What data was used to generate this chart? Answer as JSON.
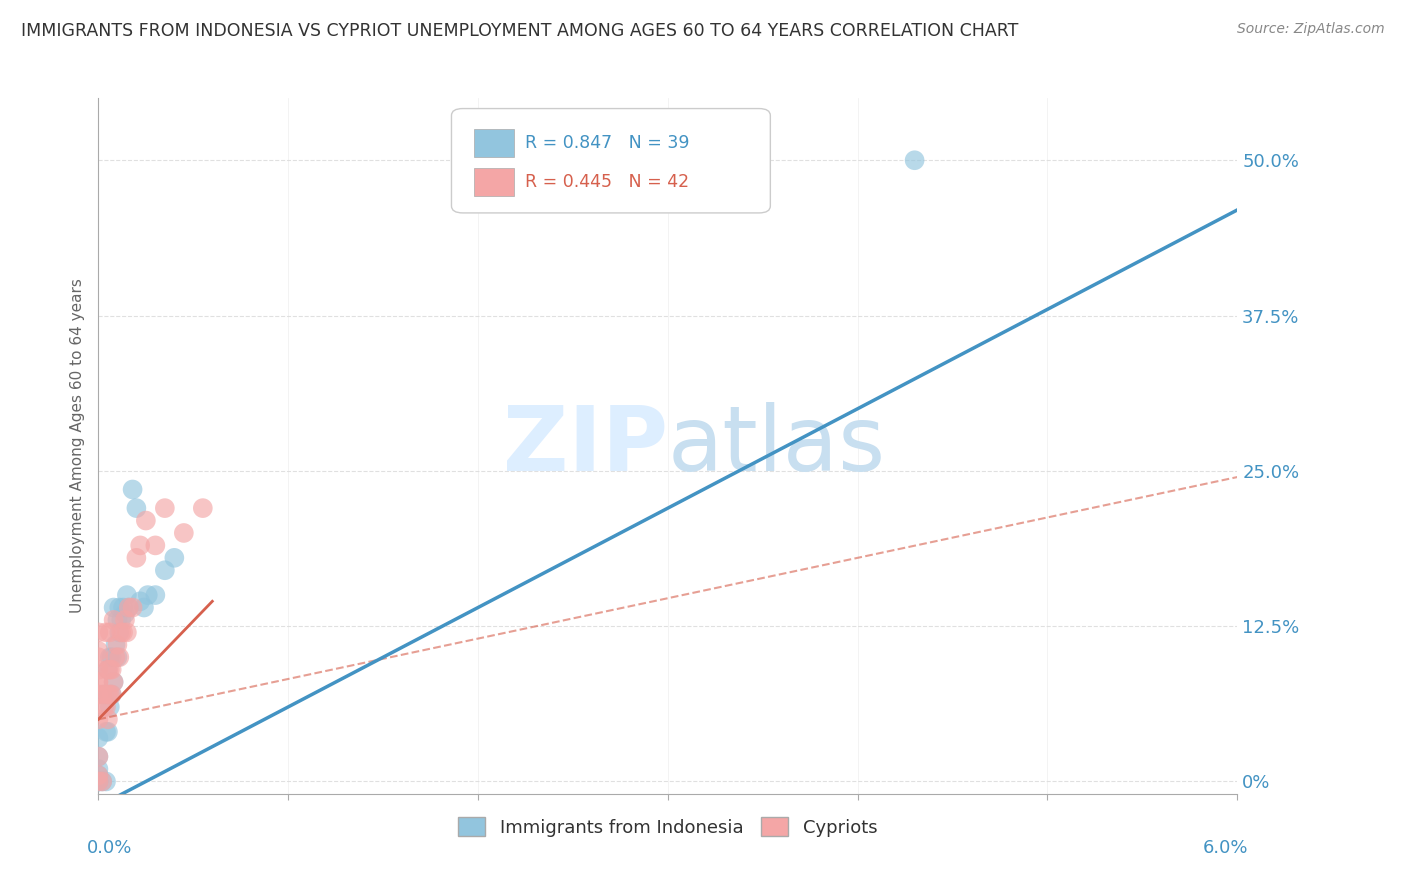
{
  "title": "IMMIGRANTS FROM INDONESIA VS CYPRIOT UNEMPLOYMENT AMONG AGES 60 TO 64 YEARS CORRELATION CHART",
  "source": "Source: ZipAtlas.com",
  "ylabel_label": "Unemployment Among Ages 60 to 64 years",
  "legend_blue_text": "R = 0.847   N = 39",
  "legend_pink_text": "R = 0.445   N = 42",
  "legend_blue_label": "Immigrants from Indonesia",
  "legend_pink_label": "Cypriots",
  "blue_color": "#92c5de",
  "pink_color": "#f4a6a6",
  "blue_line_color": "#4393c3",
  "pink_line_color": "#d6604d",
  "title_color": "#333333",
  "axis_label_color": "#4393c3",
  "watermark_color": "#ddeeff",
  "bg_color": "#ffffff",
  "grid_color": "#dddddd",
  "blue_r": 0.847,
  "pink_r": 0.445,
  "blue_n": 39,
  "pink_n": 42,
  "xlim": [
    0.0,
    6.0
  ],
  "ylim": [
    -1.0,
    55.0
  ],
  "yticks": [
    0.0,
    12.5,
    25.0,
    37.5,
    50.0
  ],
  "ytick_labels": [
    "0%",
    "12.5%",
    "25.0%",
    "37.5%",
    "50.0%"
  ],
  "blue_scatter_x": [
    0.0,
    0.0,
    0.0,
    0.0,
    0.0,
    0.0,
    0.0,
    0.02,
    0.03,
    0.04,
    0.04,
    0.05,
    0.05,
    0.06,
    0.06,
    0.07,
    0.07,
    0.08,
    0.08,
    0.09,
    0.1,
    0.1,
    0.11,
    0.11,
    0.12,
    0.13,
    0.14,
    0.15,
    0.16,
    0.18,
    0.2,
    0.22,
    0.24,
    0.26,
    0.3,
    0.35,
    0.4,
    2.9,
    4.3
  ],
  "blue_scatter_y": [
    0.0,
    0.0,
    0.0,
    0.5,
    1.0,
    2.0,
    3.5,
    0.0,
    7.0,
    0.0,
    4.0,
    4.0,
    9.0,
    6.0,
    10.0,
    7.0,
    10.0,
    8.0,
    14.0,
    11.0,
    10.0,
    13.0,
    12.0,
    14.0,
    13.0,
    14.0,
    13.5,
    15.0,
    14.0,
    23.5,
    22.0,
    14.5,
    14.0,
    15.0,
    15.0,
    17.0,
    18.0,
    50.0,
    50.0
  ],
  "pink_scatter_x": [
    0.0,
    0.0,
    0.0,
    0.0,
    0.0,
    0.0,
    0.0,
    0.0,
    0.0,
    0.0,
    0.0,
    0.02,
    0.02,
    0.03,
    0.04,
    0.04,
    0.05,
    0.05,
    0.05,
    0.06,
    0.06,
    0.06,
    0.07,
    0.07,
    0.08,
    0.08,
    0.09,
    0.1,
    0.11,
    0.12,
    0.13,
    0.14,
    0.15,
    0.16,
    0.18,
    0.2,
    0.22,
    0.25,
    0.3,
    0.35,
    0.45,
    0.55
  ],
  "pink_scatter_y": [
    0.0,
    0.5,
    2.0,
    5.0,
    7.0,
    8.0,
    8.0,
    9.0,
    10.0,
    10.5,
    12.0,
    0.0,
    7.0,
    6.0,
    6.0,
    12.0,
    5.0,
    7.0,
    9.0,
    7.0,
    9.0,
    12.0,
    7.0,
    9.0,
    8.0,
    13.0,
    10.0,
    11.0,
    10.0,
    12.0,
    12.0,
    13.0,
    12.0,
    14.0,
    14.0,
    18.0,
    19.0,
    21.0,
    19.0,
    22.0,
    20.0,
    22.0
  ],
  "blue_trendline_x0": 0.0,
  "blue_trendline_y0": -2.0,
  "blue_trendline_x1": 6.0,
  "blue_trendline_y1": 46.0,
  "pink_solid_x0": 0.0,
  "pink_solid_y0": 5.0,
  "pink_solid_x1": 0.6,
  "pink_solid_y1": 14.5,
  "pink_dash_x0": 0.0,
  "pink_dash_y0": 5.0,
  "pink_dash_x1": 6.0,
  "pink_dash_y1": 24.5
}
